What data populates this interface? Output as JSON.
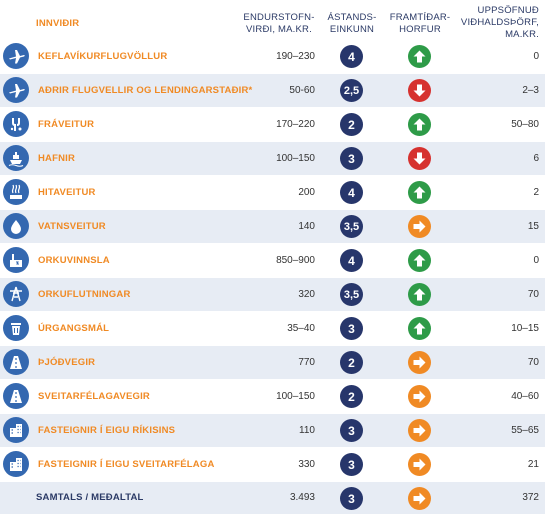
{
  "headers": {
    "category": "INNVIÐIR",
    "replacement_line1": "ENDURSTOFN-",
    "replacement_line2": "VIRÐI, MA.KR.",
    "grade_line1": "ÁSTANDS-",
    "grade_line2": "EINKUNN",
    "outlook_line1": "FRAMTÍÐAR-",
    "outlook_line2": "HORFUR",
    "backlog_line1": "UPPSÖFNUÐ",
    "backlog_line2": "VIÐHALDSÞÖRF,",
    "backlog_line3": "MA.KR."
  },
  "rows": [
    {
      "icon": "airplane-icon",
      "name": "KEFLAVÍKURFLUGVÖLLUR",
      "value": "190–230",
      "grade": "4",
      "outlook": "up",
      "backlog": "0"
    },
    {
      "icon": "airplane-icon",
      "name": "AÐRIR FLUGVELLIR OG LENDINGARSTAÐIR*",
      "value": "50-60",
      "grade": "2,5",
      "outlook": "down",
      "backlog": "2–3"
    },
    {
      "icon": "sewage-icon",
      "name": "FRÁVEITUR",
      "value": "170–220",
      "grade": "2",
      "outlook": "up",
      "backlog": "50–80"
    },
    {
      "icon": "ship-icon",
      "name": "HAFNIR",
      "value": "100–150",
      "grade": "3",
      "outlook": "down",
      "backlog": "6"
    },
    {
      "icon": "hot-water-icon",
      "name": "HITAVEITUR",
      "value": "200",
      "grade": "4",
      "outlook": "up",
      "backlog": "2"
    },
    {
      "icon": "water-drop-icon",
      "name": "VATNSVEITUR",
      "value": "140",
      "grade": "3,5",
      "outlook": "side",
      "backlog": "15"
    },
    {
      "icon": "power-plant-icon",
      "name": "ORKUVINNSLA",
      "value": "850–900",
      "grade": "4",
      "outlook": "up",
      "backlog": "0"
    },
    {
      "icon": "transmission-tower-icon",
      "name": "ORKUFLUTNINGAR",
      "value": "320",
      "grade": "3,5",
      "outlook": "up",
      "backlog": "70"
    },
    {
      "icon": "trash-bin-icon",
      "name": "ÚRGANGSMÁL",
      "value": "35–40",
      "grade": "3",
      "outlook": "up",
      "backlog": "10–15"
    },
    {
      "icon": "road-icon",
      "name": "ÞJÓÐVEGIR",
      "value": "770",
      "grade": "2",
      "outlook": "side",
      "backlog": "70"
    },
    {
      "icon": "road-icon",
      "name": "SVEITARFÉLAGAVEGIR",
      "value": "100–150",
      "grade": "2",
      "outlook": "side",
      "backlog": "40–60"
    },
    {
      "icon": "buildings-icon",
      "name": "FASTEIGNIR Í EIGU RÍKISINS",
      "value": "110",
      "grade": "3",
      "outlook": "side",
      "backlog": "55–65"
    },
    {
      "icon": "buildings-icon",
      "name": "FASTEIGNIR Í EIGU SVEITARFÉLAGA",
      "value": "330",
      "grade": "3",
      "outlook": "side",
      "backlog": "21"
    }
  ],
  "total": {
    "name": "SAMTALS / MEÐALTAL",
    "value": "3.493",
    "grade": "3",
    "outlook": "side",
    "backlog": "372"
  },
  "colors": {
    "accent": "#f08a24",
    "navy": "#27366b",
    "icon_blue": "#3468b0",
    "up": "#2e9b48",
    "down": "#d6322f",
    "side": "#f08a24",
    "stripe": "#e7ecf4"
  }
}
